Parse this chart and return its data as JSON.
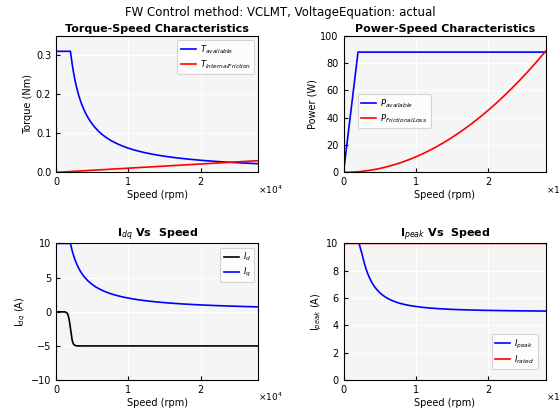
{
  "suptitle": "FW Control method: VCLMT, VoltageEquation: actual",
  "ax1_title": "Torque-Speed Characteristics",
  "ax1_xlabel": "Speed (rpm)",
  "ax1_ylabel": "Torque (Nm)",
  "ax2_title": "Power-Speed Characteristics",
  "ax2_xlabel": "Speed (rpm)",
  "ax2_ylabel": "Power (W)",
  "ax3_title": "I$_{dq}$ Vs  Speed",
  "ax3_xlabel": "Speed (rpm)",
  "ax3_ylabel": "I$_{dq}$ (A)",
  "ax4_title": "I$_{peak}$ Vs  Speed",
  "ax4_xlabel": "Speed (rpm)",
  "ax4_ylabel": "I$_{peak}$ (A)",
  "color_blue": "#0000FF",
  "color_red": "#FF0000",
  "color_black": "#000000",
  "speed_max": 28000,
  "base_speed": 2000,
  "rated_current": 10.0,
  "T_base": 0.31,
  "P_rated": 88.0,
  "I_q_base": 10.0,
  "I_d_sat": -5.0,
  "bg_color": "#f0f0f0"
}
